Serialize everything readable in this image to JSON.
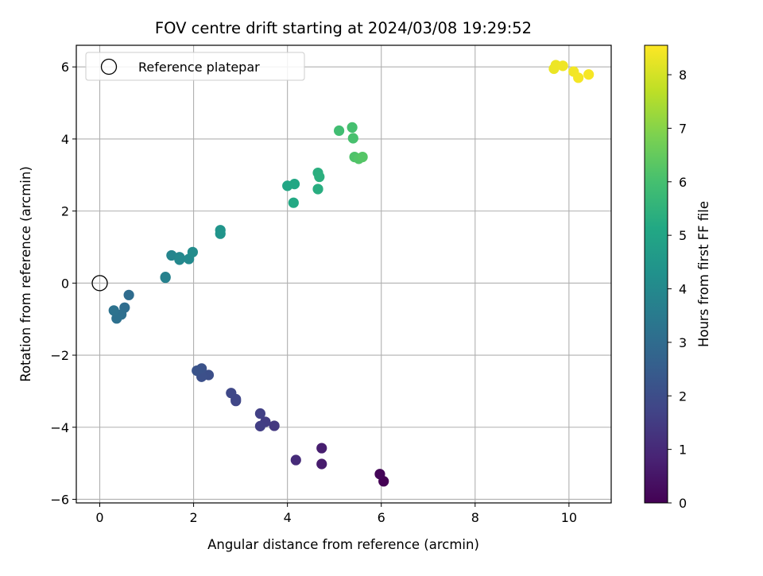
{
  "chart_data": {
    "type": "scatter",
    "title": "FOV centre drift starting at 2024/03/08 19:29:52",
    "xlabel": "Angular distance from reference (arcmin)",
    "ylabel": "Rotation from reference (arcmin)",
    "xlim": [
      -0.5,
      10.9
    ],
    "ylim": [
      -6.1,
      6.6
    ],
    "xticks": [
      0,
      2,
      4,
      6,
      8,
      10
    ],
    "yticks": [
      -6,
      -4,
      -2,
      0,
      2,
      4,
      6
    ],
    "xtick_labels": [
      "0",
      "2",
      "4",
      "6",
      "8",
      "10"
    ],
    "ytick_labels": [
      "−6",
      "−4",
      "−2",
      "0",
      "2",
      "4",
      "6"
    ],
    "grid": true,
    "legend": {
      "placement": "top-left",
      "entries": [
        {
          "label": "Reference platepar",
          "marker": "open-circle",
          "x": 0,
          "y": 0
        }
      ]
    },
    "colorbar": {
      "label": "Hours from first FF file",
      "colormap": "viridis",
      "range": [
        0,
        8.55
      ],
      "ticks": [
        0,
        1,
        2,
        3,
        4,
        5,
        6,
        7,
        8
      ],
      "tick_labels": [
        "0",
        "1",
        "2",
        "3",
        "4",
        "5",
        "6",
        "7",
        "8"
      ]
    },
    "points": [
      {
        "x": 6.05,
        "y": -5.5,
        "c": 0.0
      },
      {
        "x": 5.97,
        "y": -5.3,
        "c": 0.1
      },
      {
        "x": 4.73,
        "y": -5.02,
        "c": 0.65
      },
      {
        "x": 4.73,
        "y": -4.58,
        "c": 0.7
      },
      {
        "x": 4.18,
        "y": -4.91,
        "c": 1.05
      },
      {
        "x": 3.72,
        "y": -3.96,
        "c": 1.4
      },
      {
        "x": 3.53,
        "y": -3.85,
        "c": 1.5
      },
      {
        "x": 3.42,
        "y": -3.97,
        "c": 1.55
      },
      {
        "x": 3.42,
        "y": -3.62,
        "c": 1.6
      },
      {
        "x": 2.9,
        "y": -3.27,
        "c": 1.75
      },
      {
        "x": 2.9,
        "y": -3.22,
        "c": 1.8
      },
      {
        "x": 2.8,
        "y": -3.05,
        "c": 1.85
      },
      {
        "x": 2.32,
        "y": -2.55,
        "c": 2.05
      },
      {
        "x": 2.17,
        "y": -2.6,
        "c": 2.1
      },
      {
        "x": 2.17,
        "y": -2.37,
        "c": 2.15
      },
      {
        "x": 2.07,
        "y": -2.43,
        "c": 2.2
      },
      {
        "x": 0.62,
        "y": -0.33,
        "c": 3.0
      },
      {
        "x": 0.53,
        "y": -0.68,
        "c": 3.05
      },
      {
        "x": 0.46,
        "y": -0.87,
        "c": 3.1
      },
      {
        "x": 0.36,
        "y": -0.98,
        "c": 3.15
      },
      {
        "x": 0.3,
        "y": -0.76,
        "c": 3.2
      },
      {
        "x": 1.4,
        "y": 0.15,
        "c": 3.7
      },
      {
        "x": 1.4,
        "y": 0.17,
        "c": 3.72
      },
      {
        "x": 1.53,
        "y": 0.77,
        "c": 3.85
      },
      {
        "x": 1.7,
        "y": 0.72,
        "c": 3.95
      },
      {
        "x": 1.7,
        "y": 0.65,
        "c": 3.98
      },
      {
        "x": 1.9,
        "y": 0.67,
        "c": 4.05
      },
      {
        "x": 1.98,
        "y": 0.86,
        "c": 4.1
      },
      {
        "x": 2.57,
        "y": 1.37,
        "c": 4.4
      },
      {
        "x": 2.57,
        "y": 1.47,
        "c": 4.42
      },
      {
        "x": 4.0,
        "y": 2.7,
        "c": 5.05
      },
      {
        "x": 4.15,
        "y": 2.75,
        "c": 5.1
      },
      {
        "x": 4.13,
        "y": 2.23,
        "c": 5.15
      },
      {
        "x": 4.65,
        "y": 2.61,
        "c": 5.3
      },
      {
        "x": 4.65,
        "y": 3.06,
        "c": 5.35
      },
      {
        "x": 4.68,
        "y": 2.95,
        "c": 5.38
      },
      {
        "x": 5.1,
        "y": 4.23,
        "c": 5.9
      },
      {
        "x": 5.38,
        "y": 4.32,
        "c": 6.0
      },
      {
        "x": 5.4,
        "y": 4.02,
        "c": 6.05
      },
      {
        "x": 5.43,
        "y": 3.5,
        "c": 6.15
      },
      {
        "x": 5.52,
        "y": 3.45,
        "c": 6.2
      },
      {
        "x": 5.6,
        "y": 3.5,
        "c": 6.25
      },
      {
        "x": 9.68,
        "y": 5.95,
        "c": 8.3
      },
      {
        "x": 9.72,
        "y": 6.05,
        "c": 8.33
      },
      {
        "x": 9.87,
        "y": 6.03,
        "c": 8.36
      },
      {
        "x": 10.1,
        "y": 5.87,
        "c": 8.4
      },
      {
        "x": 10.2,
        "y": 5.7,
        "c": 8.43
      },
      {
        "x": 10.42,
        "y": 5.79,
        "c": 8.46
      }
    ]
  }
}
